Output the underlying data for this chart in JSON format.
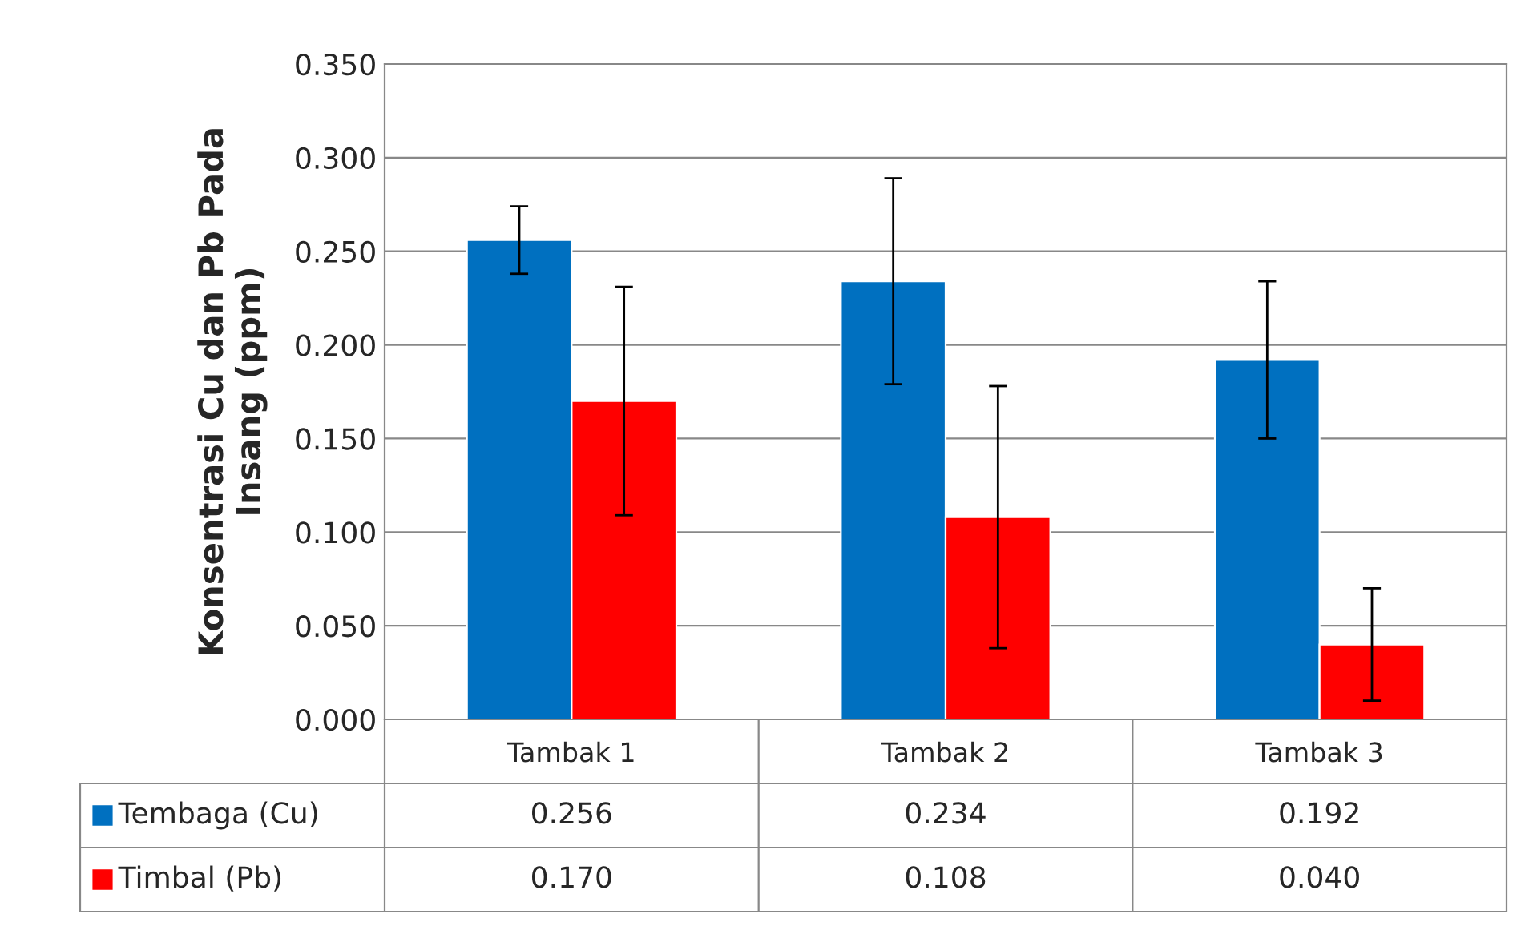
{
  "chart_data": {
    "type": "bar",
    "ylabel": "Konsentrasi Cu dan Pb Pada\nInsang (ppm)",
    "categories": [
      "Tambak 1",
      "Tambak 2",
      "Tambak 3"
    ],
    "series": [
      {
        "name": "Tembaga (Cu)",
        "color": "#0070c0",
        "values": [
          0.256,
          0.234,
          0.192
        ],
        "errors": [
          0.018,
          0.055,
          0.042
        ],
        "value_labels": [
          "0.256",
          "0.234",
          "0.192"
        ]
      },
      {
        "name": "Timbal (Pb)",
        "color": "#ff0000",
        "values": [
          0.17,
          0.108,
          0.04
        ],
        "errors": [
          0.061,
          0.07,
          0.03
        ],
        "value_labels": [
          "0.170",
          "0.108",
          "0.040"
        ]
      }
    ],
    "ylim": [
      0,
      0.35
    ],
    "yticks": [
      {
        "value": 0,
        "label": "0.000"
      },
      {
        "value": 0.05,
        "label": "0.050"
      },
      {
        "value": 0.1,
        "label": "0.100"
      },
      {
        "value": 0.15,
        "label": "0.150"
      },
      {
        "value": 0.2,
        "label": "0.200"
      },
      {
        "value": 0.25,
        "label": "0.250"
      },
      {
        "value": 0.3,
        "label": "0.300"
      },
      {
        "value": 0.35,
        "label": "0.350"
      }
    ],
    "grid": "y",
    "legend": "bottom"
  }
}
